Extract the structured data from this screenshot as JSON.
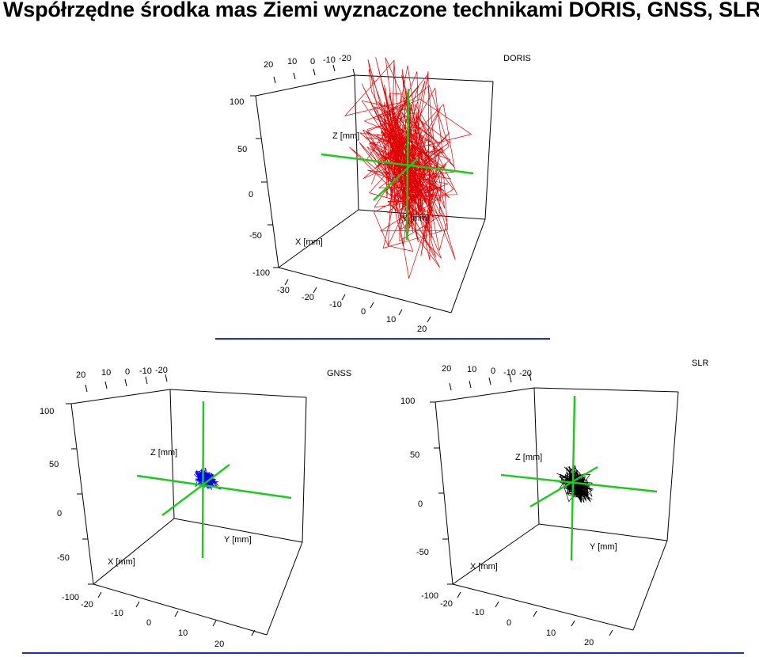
{
  "title": "Współrzędne środka mas Ziemi  wyznaczone technikami DORIS, GNSS, SLR",
  "colors": {
    "DORIS": "#e00000",
    "GNSS": "#0000ee",
    "SLR": "#000000",
    "axes": "#18cc18",
    "separator": "#1f2fb4"
  },
  "chart_data": [
    {
      "type": "scatter",
      "title": "DORIS",
      "labels": {
        "x": "X [mm]",
        "y": "Y [mm]",
        "z": "Z [mm]"
      },
      "axis_ticks": {
        "x": [
          "-30",
          "-20",
          "-10",
          "0",
          "10",
          "20"
        ],
        "z": [
          "100",
          "50",
          "0",
          "-50",
          "-100"
        ],
        "top": [
          "20",
          "10",
          "0",
          "-10",
          "-20"
        ]
      },
      "ranges": {
        "x": [
          -30,
          20
        ],
        "y": [
          -20,
          20
        ],
        "z": [
          -100,
          100
        ]
      },
      "series": [
        {
          "color": "red",
          "spread_mm": {
            "x": 15,
            "y": 18,
            "z": 45
          },
          "points": 400
        }
      ]
    },
    {
      "type": "scatter",
      "title": "GNSS",
      "labels": {
        "x": "X [mm]",
        "y": "Y [mm]",
        "z": "Z [mm]"
      },
      "axis_ticks": {
        "x": [
          "-20",
          "-10",
          "0",
          "10",
          "20"
        ],
        "z": [
          "100",
          "50",
          "0",
          "-50",
          "-100"
        ],
        "top": [
          "20",
          "10",
          "0",
          "-10",
          "-20"
        ]
      },
      "ranges": {
        "x": [
          -20,
          20
        ],
        "y": [
          -20,
          20
        ],
        "z": [
          -100,
          100
        ]
      },
      "series": [
        {
          "color": "blue",
          "spread_mm": {
            "x": 3,
            "y": 4,
            "z": 4
          },
          "points": 400
        }
      ]
    },
    {
      "type": "scatter",
      "title": "SLR",
      "labels": {
        "x": "X [mm]",
        "y": "Y [mm]",
        "z": "Z [mm]"
      },
      "axis_ticks": {
        "x": [
          "-20",
          "-10",
          "0",
          "10",
          "20"
        ],
        "z": [
          "100",
          "50",
          "0",
          "-50",
          "-100"
        ],
        "top": [
          "20",
          "10",
          "0",
          "-10",
          "-20"
        ]
      },
      "ranges": {
        "x": [
          -20,
          20
        ],
        "y": [
          -20,
          20
        ],
        "z": [
          -100,
          100
        ]
      },
      "series": [
        {
          "color": "black",
          "spread_mm": {
            "x": 5,
            "y": 5,
            "z": 8
          },
          "points": 400
        }
      ]
    }
  ]
}
